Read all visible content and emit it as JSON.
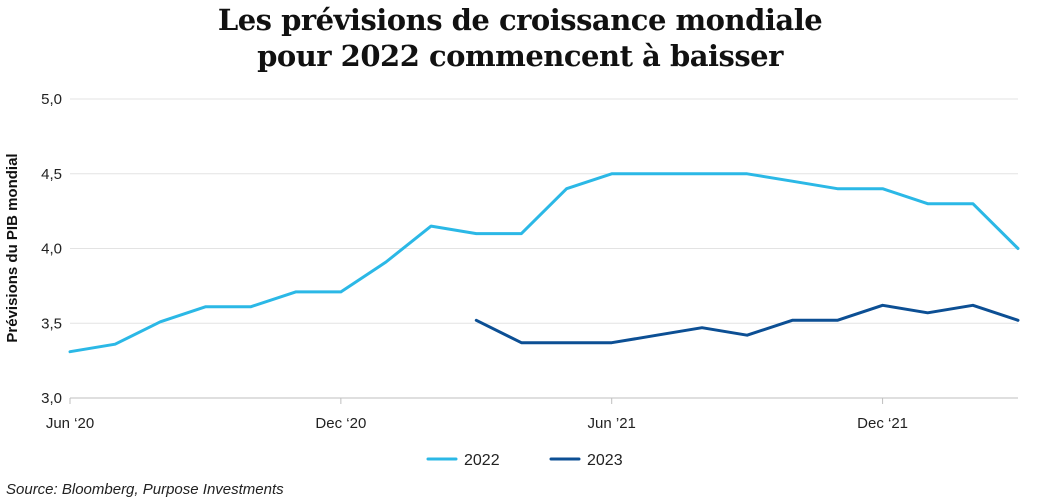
{
  "title_line1": "Les prévisions de croissance mondiale",
  "title_line2": "pour 2022 commencent à baisser",
  "source": "Source: Bloomberg, Purpose Investments",
  "chart_data": {
    "type": "line",
    "title": "Les prévisions de croissance mondiale pour 2022 commencent à baisser",
    "ylabel": "Prévisions du PIB mondial",
    "xlabel": "",
    "ylim": [
      3.0,
      5.0
    ],
    "yticks": [
      "3,0",
      "3,5",
      "4,0",
      "4,5",
      "5,0"
    ],
    "xticks": [
      "Jun ‘20",
      "Dec ‘20",
      "Jun ’21",
      "Dec ‘21"
    ],
    "x": [
      "2020-06",
      "2020-07",
      "2020-08",
      "2020-09",
      "2020-10",
      "2020-11",
      "2020-12",
      "2021-01",
      "2021-02",
      "2021-03",
      "2021-04",
      "2021-05",
      "2021-06",
      "2021-07",
      "2021-08",
      "2021-09",
      "2021-10",
      "2021-11",
      "2021-12",
      "2022-01",
      "2022-02",
      "2022-03"
    ],
    "series": [
      {
        "name": "2022",
        "color": "#2bb8e6",
        "values": [
          3.31,
          3.36,
          3.51,
          3.61,
          3.61,
          3.71,
          3.71,
          3.91,
          4.15,
          4.1,
          4.1,
          4.4,
          4.5,
          4.5,
          4.5,
          4.5,
          4.45,
          4.4,
          4.4,
          4.3,
          4.3,
          4.0
        ]
      },
      {
        "name": "2023",
        "color": "#0c4f94",
        "values": [
          null,
          null,
          null,
          null,
          null,
          null,
          null,
          null,
          null,
          3.52,
          3.37,
          3.37,
          3.37,
          3.42,
          3.47,
          3.42,
          3.52,
          3.52,
          3.62,
          3.57,
          3.62,
          3.52
        ]
      }
    ],
    "grid": true,
    "legend": "bottom-center"
  }
}
